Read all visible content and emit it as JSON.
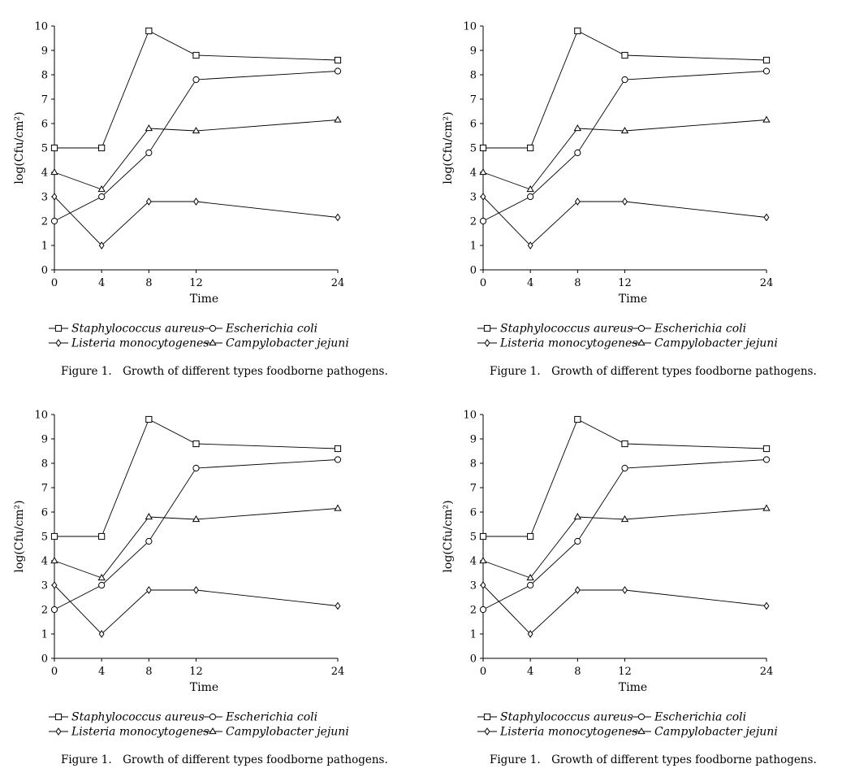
{
  "caption": "Figure 1. Growth of different types foodborne pathogens.",
  "chart_data": [
    {
      "type": "line",
      "xlabel": "Time",
      "ylabel": "log(Cfu/cm²)",
      "x": [
        0,
        4,
        8,
        12,
        24
      ],
      "xticks": [
        0,
        4,
        8,
        12,
        24
      ],
      "yticks": [
        0,
        1,
        2,
        3,
        4,
        5,
        6,
        7,
        8,
        9,
        10
      ],
      "xlim": [
        0,
        24
      ],
      "ylim": [
        0,
        10
      ],
      "grid": false,
      "legend": "below",
      "series": [
        {
          "name": "Staphylococcus aureus",
          "marker": "square",
          "values": [
            5,
            5,
            9.8,
            8.8,
            8.6
          ]
        },
        {
          "name": "Escherichia coli",
          "marker": "circle",
          "values": [
            2,
            3,
            4.8,
            7.8,
            8.15
          ]
        },
        {
          "name": "Listeria monocytogenes",
          "marker": "diamond",
          "values": [
            3,
            1,
            2.8,
            2.8,
            2.15
          ]
        },
        {
          "name": "Campylobacter jejuni",
          "marker": "triangle",
          "values": [
            4,
            3.3,
            5.8,
            5.7,
            6.15
          ]
        }
      ]
    },
    {
      "type": "line",
      "xlabel": "Time",
      "ylabel": "log(Cfu/cm²)",
      "x": [
        0,
        4,
        8,
        12,
        24
      ],
      "xticks": [
        0,
        4,
        8,
        12,
        24
      ],
      "yticks": [
        0,
        1,
        2,
        3,
        4,
        5,
        6,
        7,
        8,
        9,
        10
      ],
      "xlim": [
        0,
        24
      ],
      "ylim": [
        0,
        10
      ],
      "grid": false,
      "legend": "below",
      "series": [
        {
          "name": "Staphylococcus aureus",
          "marker": "square",
          "values": [
            5,
            5,
            9.8,
            8.8,
            8.6
          ]
        },
        {
          "name": "Escherichia coli",
          "marker": "circle",
          "values": [
            2,
            3,
            4.8,
            7.8,
            8.15
          ]
        },
        {
          "name": "Listeria monocytogenes",
          "marker": "diamond",
          "values": [
            3,
            1,
            2.8,
            2.8,
            2.15
          ]
        },
        {
          "name": "Campylobacter jejuni",
          "marker": "triangle",
          "values": [
            4,
            3.3,
            5.8,
            5.7,
            6.15
          ]
        }
      ]
    },
    {
      "type": "line",
      "xlabel": "Time",
      "ylabel": "log(Cfu/cm²)",
      "x": [
        0,
        4,
        8,
        12,
        24
      ],
      "xticks": [
        0,
        4,
        8,
        12,
        24
      ],
      "yticks": [
        0,
        1,
        2,
        3,
        4,
        5,
        6,
        7,
        8,
        9,
        10
      ],
      "xlim": [
        0,
        24
      ],
      "ylim": [
        0,
        10
      ],
      "grid": false,
      "legend": "below",
      "series": [
        {
          "name": "Staphylococcus aureus",
          "marker": "square",
          "values": [
            5,
            5,
            9.8,
            8.8,
            8.6
          ]
        },
        {
          "name": "Escherichia coli",
          "marker": "circle",
          "values": [
            2,
            3,
            4.8,
            7.8,
            8.15
          ]
        },
        {
          "name": "Listeria monocytogenes",
          "marker": "diamond",
          "values": [
            3,
            1,
            2.8,
            2.8,
            2.15
          ]
        },
        {
          "name": "Campylobacter jejuni",
          "marker": "triangle",
          "values": [
            4,
            3.3,
            5.8,
            5.7,
            6.15
          ]
        }
      ]
    },
    {
      "type": "line",
      "xlabel": "Time",
      "ylabel": "log(Cfu/cm²)",
      "x": [
        0,
        4,
        8,
        12,
        24
      ],
      "xticks": [
        0,
        4,
        8,
        12,
        24
      ],
      "yticks": [
        0,
        1,
        2,
        3,
        4,
        5,
        6,
        7,
        8,
        9,
        10
      ],
      "xlim": [
        0,
        24
      ],
      "ylim": [
        0,
        10
      ],
      "grid": false,
      "legend": "below",
      "series": [
        {
          "name": "Staphylococcus aureus",
          "marker": "square",
          "values": [
            5,
            5,
            9.8,
            8.8,
            8.6
          ]
        },
        {
          "name": "Escherichia coli",
          "marker": "circle",
          "values": [
            2,
            3,
            4.8,
            7.8,
            8.15
          ]
        },
        {
          "name": "Listeria monocytogenes",
          "marker": "diamond",
          "values": [
            3,
            1,
            2.8,
            2.8,
            2.15
          ]
        },
        {
          "name": "Campylobacter jejuni",
          "marker": "triangle",
          "values": [
            4,
            3.3,
            5.8,
            5.7,
            6.15
          ]
        }
      ]
    }
  ]
}
